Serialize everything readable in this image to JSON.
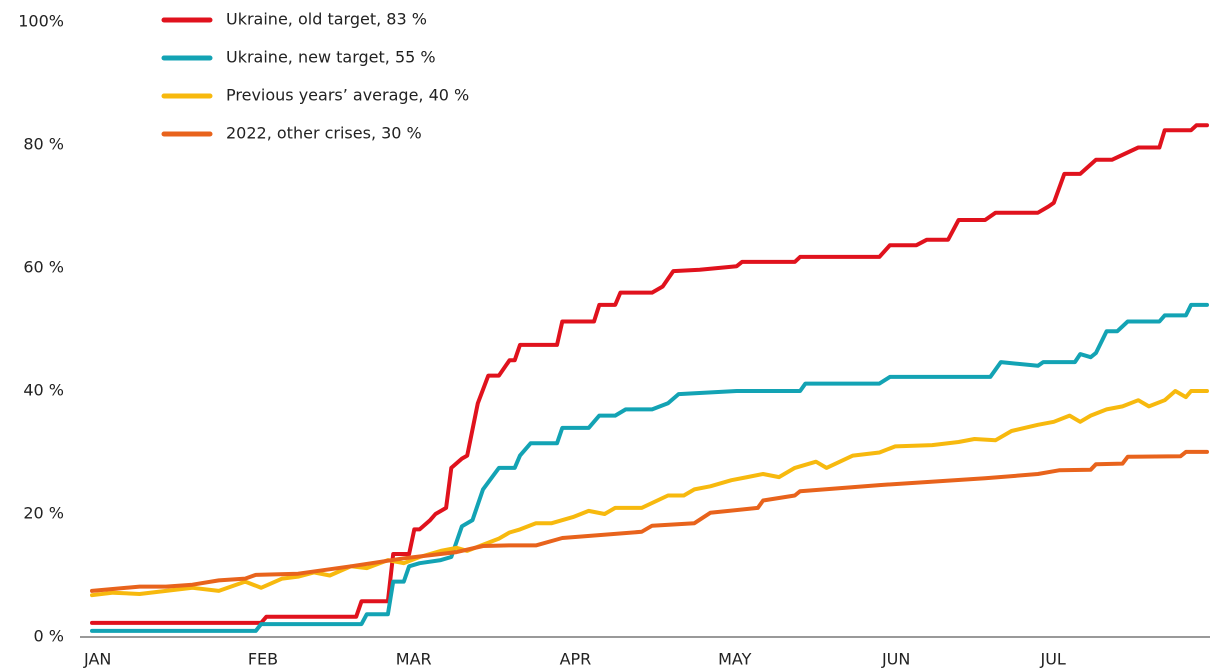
{
  "chart_data": {
    "type": "line",
    "xlim": [
      1,
      212
    ],
    "xticks": [
      {
        "value": 1,
        "label": "JAN"
      },
      {
        "value": 32,
        "label": "FEB"
      },
      {
        "value": 60,
        "label": "MAR"
      },
      {
        "value": 91,
        "label": "APR"
      },
      {
        "value": 121,
        "label": "MAY"
      },
      {
        "value": 152,
        "label": "JUN"
      },
      {
        "value": 182,
        "label": "JUL"
      }
    ],
    "ylim": [
      0,
      100
    ],
    "yticks": [
      {
        "value": 0,
        "label": "0 %"
      },
      {
        "value": 20,
        "label": "20 %"
      },
      {
        "value": 40,
        "label": "40 %"
      },
      {
        "value": 60,
        "label": "60 %"
      },
      {
        "value": 80,
        "label": "80 %"
      },
      {
        "value": 100,
        "label": "100%"
      }
    ],
    "grid": false,
    "legend": "top-left",
    "series": [
      {
        "name": "Ukraine, old target, 83 %",
        "color": "#e0121d",
        "x": [
          1,
          33,
          34,
          51,
          52,
          57,
          58,
          61,
          62,
          63,
          65,
          66,
          68,
          69,
          71,
          72,
          74,
          76,
          78,
          80,
          81,
          82,
          89,
          90,
          96,
          97,
          100,
          101,
          107,
          109,
          111,
          116,
          123,
          124,
          134,
          135,
          150,
          152,
          157,
          159,
          163,
          165,
          170,
          172,
          180,
          182,
          183,
          185,
          188,
          191,
          194,
          199,
          203,
          204,
          209,
          210,
          212
        ],
        "values": [
          2.3,
          2.3,
          3.3,
          3.3,
          5.8,
          5.8,
          13.5,
          13.5,
          17.5,
          17.5,
          19,
          20,
          21,
          27.5,
          29,
          29.5,
          38,
          42.5,
          42.5,
          45,
          45,
          47.5,
          47.5,
          51.3,
          51.3,
          54,
          54,
          56,
          56,
          57,
          59.5,
          59.7,
          60.3,
          61,
          61,
          61.8,
          61.8,
          63.7,
          63.7,
          64.6,
          64.6,
          67.8,
          67.8,
          69,
          69,
          70,
          70.6,
          75.3,
          75.3,
          77.6,
          77.6,
          79.6,
          79.6,
          82.4,
          82.4,
          83.2,
          83.2
        ]
      },
      {
        "name": "Ukraine, new target, 55 %",
        "color": "#13a3b4",
        "x": [
          1,
          32,
          33,
          52,
          53,
          57,
          58,
          60,
          61,
          63,
          67,
          69,
          71,
          73,
          75,
          78,
          81,
          82,
          84,
          89,
          90,
          95,
          97,
          100,
          102,
          107,
          110,
          112,
          123,
          135,
          136,
          150,
          152,
          171,
          173,
          180,
          181,
          187,
          188,
          190,
          191,
          193,
          195,
          197,
          203,
          204,
          208,
          209,
          212
        ],
        "values": [
          1,
          1,
          2.1,
          2.1,
          3.7,
          3.7,
          9,
          9,
          11.5,
          12,
          12.5,
          13,
          18,
          19,
          24,
          27.5,
          27.5,
          29.5,
          31.5,
          31.5,
          34,
          34,
          36,
          36,
          37,
          37,
          38,
          39.5,
          40,
          40,
          41.2,
          41.2,
          42.3,
          42.3,
          44.7,
          44.1,
          44.7,
          44.7,
          46,
          45.5,
          46.2,
          49.7,
          49.7,
          51.3,
          51.3,
          52.3,
          52.3,
          54,
          54
        ]
      },
      {
        "name": "Previous years’ average, 40 %",
        "color": "#f7b90e",
        "x": [
          1,
          5,
          10,
          15,
          20,
          25,
          30,
          33,
          37,
          40,
          43,
          46,
          50,
          53,
          57,
          60,
          63,
          67,
          70,
          72,
          75,
          78,
          80,
          82,
          85,
          88,
          92,
          95,
          98,
          100,
          105,
          110,
          113,
          115,
          118,
          122,
          125,
          128,
          131,
          134,
          138,
          140,
          145,
          150,
          153,
          160,
          165,
          168,
          172,
          175,
          180,
          183,
          186,
          188,
          190,
          193,
          196,
          199,
          201,
          204,
          206,
          208,
          209,
          212
        ],
        "values": [
          6.8,
          7.2,
          7,
          7.5,
          8,
          7.5,
          9,
          8,
          9.5,
          9.8,
          10.5,
          10,
          11.5,
          11.2,
          12.5,
          12,
          13,
          14,
          14.5,
          14,
          15,
          16,
          17,
          17.5,
          18.5,
          18.5,
          19.5,
          20.5,
          20,
          21,
          21,
          23,
          23,
          24,
          24.5,
          25.5,
          26,
          26.5,
          26,
          27.5,
          28.5,
          27.5,
          29.5,
          30,
          31,
          31.2,
          31.7,
          32.2,
          32,
          33.5,
          34.5,
          35,
          36,
          35,
          36,
          37,
          37.5,
          38.5,
          37.5,
          38.5,
          40,
          39,
          40,
          40
        ]
      },
      {
        "name": "2022, other crises, 30 %",
        "color": "#e8631c",
        "x": [
          1,
          10,
          15,
          20,
          25,
          30,
          32,
          40,
          50,
          60,
          70,
          75,
          80,
          85,
          90,
          105,
          107,
          115,
          118,
          127,
          128,
          134,
          135,
          150,
          170,
          180,
          184,
          190,
          191,
          196,
          197,
          207,
          208,
          212
        ],
        "values": [
          7.5,
          8.2,
          8.2,
          8.5,
          9.2,
          9.5,
          10.1,
          10.3,
          11.5,
          12.8,
          13.8,
          14.8,
          14.9,
          14.9,
          16.1,
          17.1,
          18.1,
          18.5,
          20.2,
          21,
          22.2,
          23,
          23.7,
          24.7,
          25.8,
          26.5,
          27.1,
          27.2,
          28.1,
          28.2,
          29.3,
          29.4,
          30.1,
          30.1
        ]
      }
    ]
  }
}
